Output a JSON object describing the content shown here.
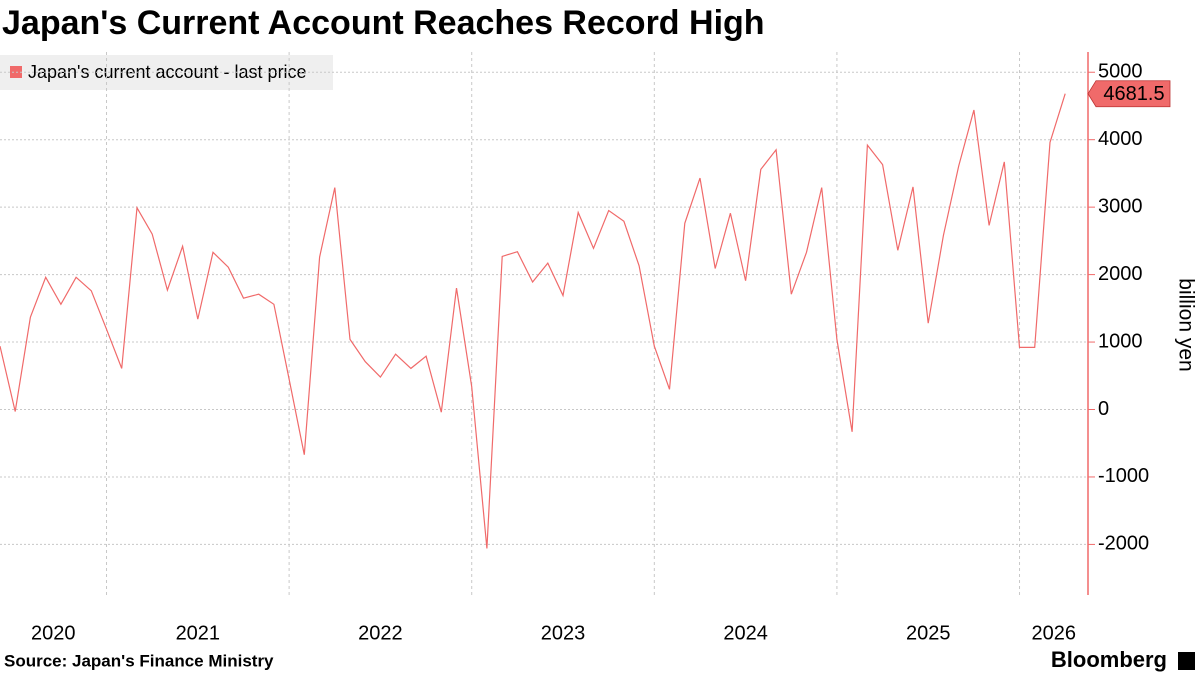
{
  "chart_data": {
    "type": "line",
    "title": "Japan's Current Account Reaches Record High",
    "y_axis_label": "billion yen",
    "source": "Source: Japan's Finance Ministry",
    "brand": "Bloomberg",
    "x": [
      2020.4167,
      2020.5,
      2020.5833,
      2020.6667,
      2020.75,
      2020.8333,
      2020.9167,
      2021,
      2021.0833,
      2021.1667,
      2021.25,
      2021.3333,
      2021.4167,
      2021.5,
      2021.5833,
      2021.6667,
      2021.75,
      2021.8333,
      2021.9167,
      2022,
      2022.0833,
      2022.1667,
      2022.25,
      2022.3333,
      2022.4167,
      2022.5,
      2022.5833,
      2022.6667,
      2022.75,
      2022.8333,
      2022.9167,
      2023,
      2023.0833,
      2023.1667,
      2023.25,
      2023.3333,
      2023.4167,
      2023.5,
      2023.5833,
      2023.6667,
      2023.75,
      2023.8333,
      2023.9167,
      2024,
      2024.0833,
      2024.1667,
      2024.25,
      2024.3333,
      2024.4167,
      2024.5,
      2024.5833,
      2024.6667,
      2024.75,
      2024.8333,
      2024.9167,
      2025,
      2025.0833,
      2025.1667,
      2025.25,
      2025.3333,
      2025.4167,
      2025.5,
      2025.5833,
      2025.6667,
      2025.75,
      2025.8333,
      2025.9167,
      2026,
      2026.0833,
      2026.1667,
      2026.25
    ],
    "series": [
      {
        "name": "Japan's current account - last price",
        "color": "#f06a6a",
        "values": [
          940,
          -30,
          1370,
          1960,
          1560,
          1960,
          1760,
          1190,
          610,
          2990,
          2600,
          1770,
          2420,
          1340,
          2330,
          2110,
          1650,
          1710,
          1560,
          450,
          -670,
          2260,
          3290,
          1040,
          710,
          480,
          820,
          610,
          790,
          -40,
          1800,
          340,
          -2060,
          2270,
          2340,
          1890,
          2170,
          1690,
          2920,
          2390,
          2950,
          2790,
          2130,
          940,
          300,
          2760,
          3430,
          2090,
          2910,
          1910,
          3560,
          3850,
          1710,
          2330,
          3290,
          1040,
          -330,
          3920,
          3630,
          2360,
          3300,
          1280,
          2580,
          3610,
          4440,
          2730,
          3670,
          920,
          920,
          3960,
          4681.5
        ]
      }
    ],
    "xlim": [
      2020.4167,
      2026.375
    ],
    "xticks": [
      2020,
      2021,
      2022,
      2023,
      2024,
      2025,
      2026
    ],
    "ylim": [
      -2750,
      5300
    ],
    "yticks": [
      -2000,
      -1000,
      0,
      1000,
      2000,
      3000,
      4000,
      5000
    ],
    "grid": true
  }
}
